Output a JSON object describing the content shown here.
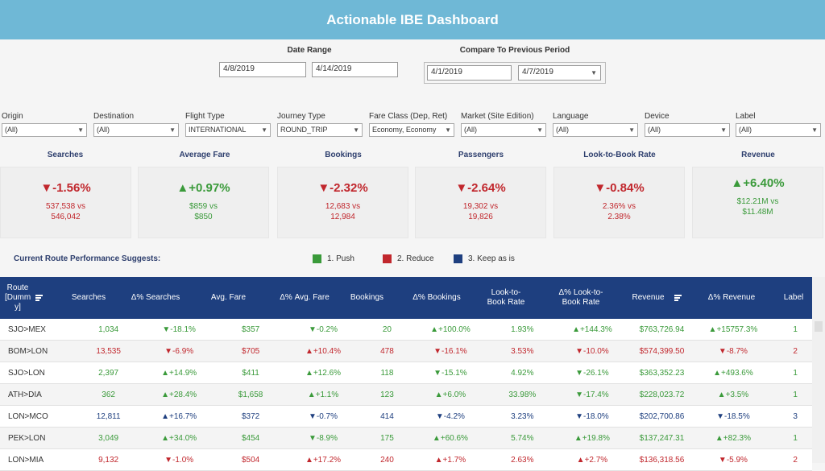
{
  "title": "Actionable IBE Dashboard",
  "date_range": {
    "label": "Date Range",
    "start": "4/8/2019",
    "end": "4/14/2019"
  },
  "compare": {
    "label": "Compare To Previous Period",
    "start": "4/1/2019",
    "end": "4/7/2019"
  },
  "filters": [
    {
      "label": "Origin",
      "value": "(All)"
    },
    {
      "label": "Destination",
      "value": "(All)"
    },
    {
      "label": "Flight Type",
      "value": "INTERNATIONAL"
    },
    {
      "label": "Journey Type",
      "value": "ROUND_TRIP"
    },
    {
      "label": "Fare Class (Dep, Ret)",
      "value": "Economy, Economy"
    },
    {
      "label": "Market (Site Edition)",
      "value": "(All)"
    },
    {
      "label": "Language",
      "value": "(All)"
    },
    {
      "label": "Device",
      "value": "(All)"
    },
    {
      "label": "Label",
      "value": "(All)"
    }
  ],
  "kpis": [
    {
      "title": "Searches",
      "pct": "▼-1.56%",
      "line1": "537,538 vs",
      "line2": "546,042",
      "color": "#c1272d"
    },
    {
      "title": "Average Fare",
      "pct": "▲+0.97%",
      "line1": "$859 vs",
      "line2": "$850",
      "color": "#3a9a3a"
    },
    {
      "title": "Bookings",
      "pct": "▼-2.32%",
      "line1": "12,683 vs",
      "line2": "12,984",
      "color": "#c1272d"
    },
    {
      "title": "Passengers",
      "pct": "▼-2.64%",
      "line1": "19,302  vs",
      "line2": "19,826",
      "color": "#c1272d"
    },
    {
      "title": "Look-to-Book Rate",
      "pct": "▼-0.84%",
      "line1": "2.36% vs",
      "line2": "2.38%",
      "color": "#c1272d"
    },
    {
      "title": "Revenue",
      "pct": "▲+6.40%",
      "line1": "$12.21M vs",
      "line2": "$11.48M",
      "color": "#3a9a3a"
    }
  ],
  "suggest_label": "Current Route Performance Suggests:",
  "legend": [
    {
      "label": "1. Push",
      "color": "#3a9a3a"
    },
    {
      "label": "2. Reduce",
      "color": "#c1272d"
    },
    {
      "label": "3. Keep as is",
      "color": "#1e3f7f"
    }
  ],
  "table": {
    "headers": [
      "Route [Dumm y]",
      "Searches",
      "Δ% Searches",
      "Avg. Fare",
      "Δ%  Avg. Fare",
      "Bookings",
      "Δ% Bookings",
      "Look-to-Book Rate",
      "Δ% Look-to-Book Rate",
      "Revenue",
      "Δ% Revenue",
      "Label"
    ],
    "rows": [
      {
        "label": "1",
        "cells": [
          "SJO>MEX",
          "1,034",
          "▼-18.1%",
          "$357",
          "▼-0.2%",
          "20",
          "▲+100.0%",
          "1.93%",
          "▲+144.3%",
          "$763,726.94",
          "▲+15757.3%",
          "1"
        ]
      },
      {
        "label": "2",
        "cells": [
          "BOM>LON",
          "13,535",
          "▼-6.9%",
          "$705",
          "▲+10.4%",
          "478",
          "▼-16.1%",
          "3.53%",
          "▼-10.0%",
          "$574,399.50",
          "▼-8.7%",
          "2"
        ]
      },
      {
        "label": "1",
        "cells": [
          "SJO>LON",
          "2,397",
          "▲+14.9%",
          "$411",
          "▲+12.6%",
          "118",
          "▼-15.1%",
          "4.92%",
          "▼-26.1%",
          "$363,352.23",
          "▲+493.6%",
          "1"
        ]
      },
      {
        "label": "1",
        "cells": [
          "ATH>DIA",
          "362",
          "▲+28.4%",
          "$1,658",
          "▲+1.1%",
          "123",
          "▲+6.0%",
          "33.98%",
          "▼-17.4%",
          "$228,023.72",
          "▲+3.5%",
          "1"
        ]
      },
      {
        "label": "3",
        "cells": [
          "LON>MCO",
          "12,811",
          "▲+16.7%",
          "$372",
          "▼-0.7%",
          "414",
          "▼-4.2%",
          "3.23%",
          "▼-18.0%",
          "$202,700.86",
          "▼-18.5%",
          "3"
        ]
      },
      {
        "label": "1",
        "cells": [
          "PEK>LON",
          "3,049",
          "▲+34.0%",
          "$454",
          "▼-8.9%",
          "175",
          "▲+60.6%",
          "5.74%",
          "▲+19.8%",
          "$137,247.31",
          "▲+82.3%",
          "1"
        ]
      },
      {
        "label": "2",
        "cells": [
          "LON>MIA",
          "9,132",
          "▼-1.0%",
          "$504",
          "▲+17.2%",
          "240",
          "▲+1.7%",
          "2.63%",
          "▲+2.7%",
          "$136,318.56",
          "▼-5.9%",
          "2"
        ]
      }
    ]
  },
  "colors": {
    "header_bg": "#6fb8d6",
    "table_header": "#1e3f7f",
    "push": "#3a9a3a",
    "reduce": "#c1272d",
    "keep": "#1e3f7f"
  }
}
